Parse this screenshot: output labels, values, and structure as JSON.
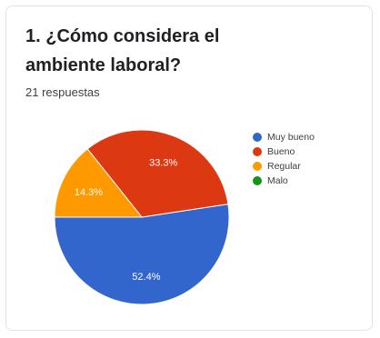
{
  "question": {
    "title": "1. ¿Cómo considera el ambiente laboral?",
    "responses": "21 respuestas"
  },
  "legend_position": "right",
  "chart_data": {
    "type": "pie",
    "categories": [
      "Muy bueno",
      "Bueno",
      "Regular",
      "Malo"
    ],
    "values": [
      52.4,
      33.3,
      14.3,
      0
    ],
    "labels": [
      "52.4%",
      "33.3%",
      "14.3%",
      ""
    ],
    "colors": [
      "#3366cc",
      "#dc3912",
      "#ff9900",
      "#109618"
    ]
  }
}
